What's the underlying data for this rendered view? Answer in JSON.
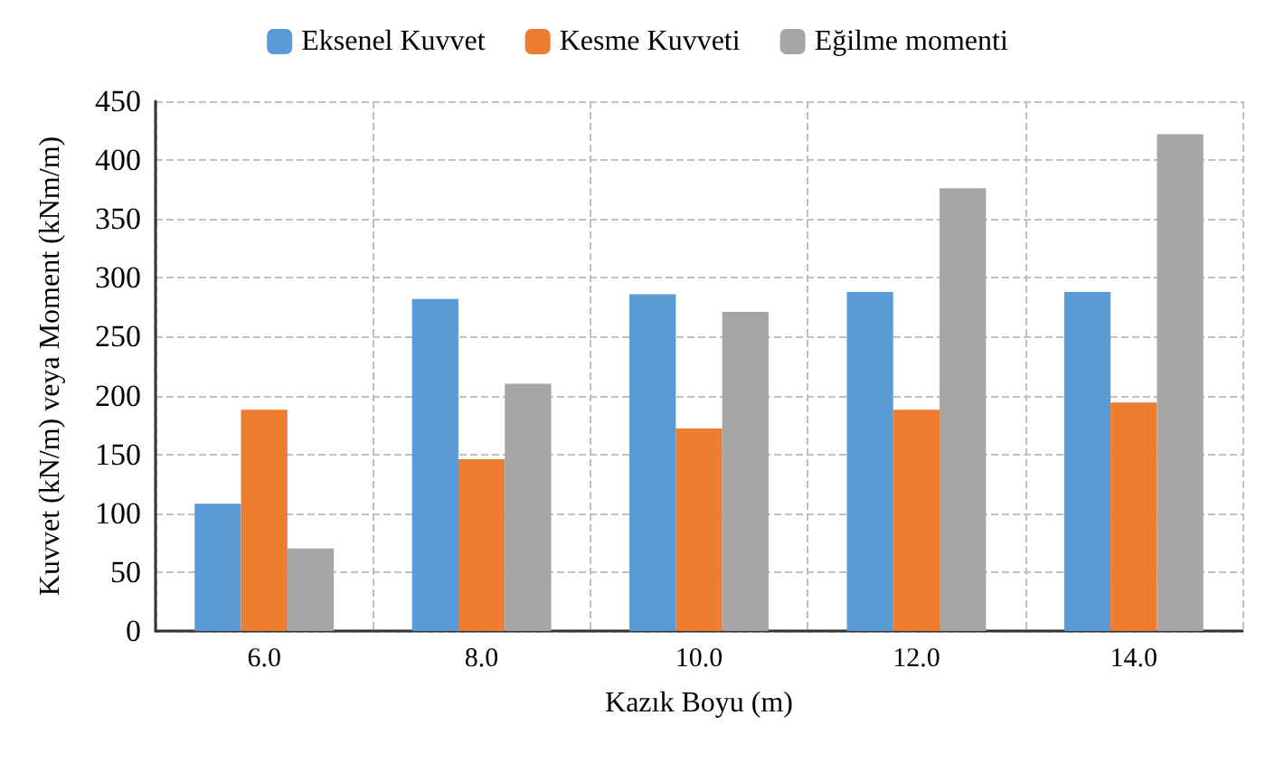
{
  "chart_data": {
    "type": "bar",
    "xlabel": "Kazık Boyu (m)",
    "ylabel": "Kuvvet (kN/m) veya Moment (kNm/m)",
    "categories": [
      "6.0",
      "8.0",
      "10.0",
      "12.0",
      "14.0"
    ],
    "series": [
      {
        "name": "Eksenel Kuvvet",
        "color": "#5b9bd5",
        "values": [
          108,
          282,
          286,
          288,
          288
        ]
      },
      {
        "name": "Kesme Kuvveti",
        "color": "#ed7d31",
        "values": [
          188,
          146,
          172,
          188,
          194
        ]
      },
      {
        "name": "Eğilme momenti",
        "color": "#a5a5a5",
        "values": [
          70,
          210,
          271,
          376,
          422
        ]
      }
    ],
    "ylim": [
      0,
      450
    ],
    "yticks": [
      0,
      50,
      100,
      150,
      200,
      250,
      300,
      350,
      400,
      450
    ],
    "grid": true,
    "legend": "top"
  }
}
